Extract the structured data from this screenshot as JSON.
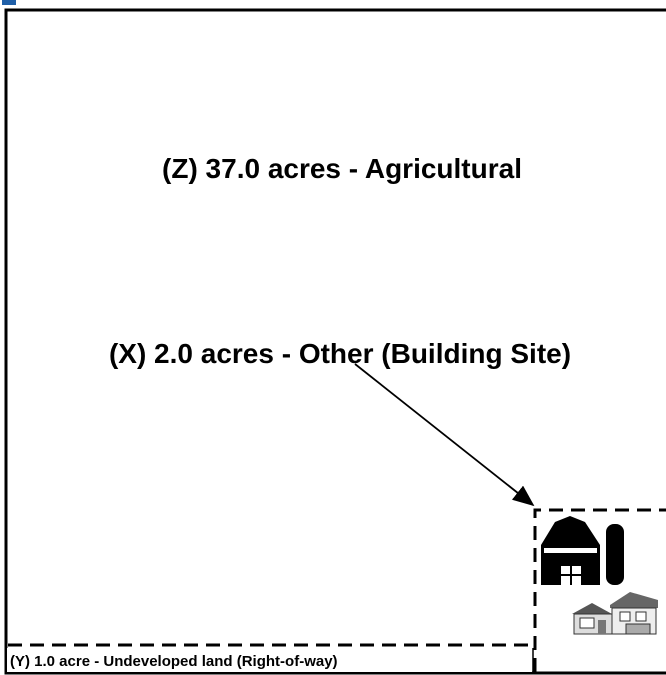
{
  "parcels": [
    {
      "label": "(Z) 37.0 acres - Agricultural"
    },
    {
      "label": "(X) 2.0 acres - Other (Building Site)"
    },
    {
      "label": "(Y) 1.0 acre - Undeveloped land (Right-of-way)"
    }
  ]
}
